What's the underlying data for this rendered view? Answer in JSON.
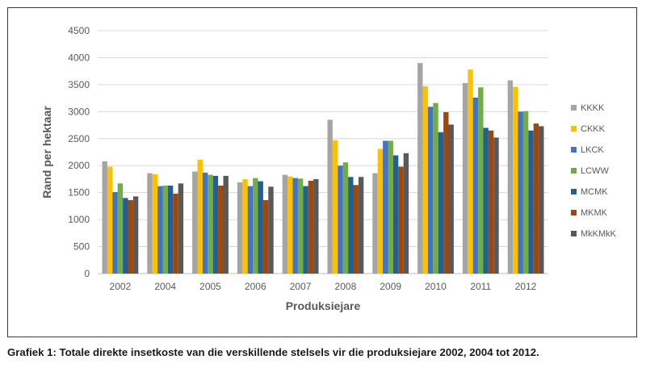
{
  "chart_data": {
    "type": "bar",
    "xlabel": "Produksiejare",
    "ylabel": "Rand per hektaar",
    "ylim": [
      0,
      4500
    ],
    "yticks": [
      0,
      500,
      1000,
      1500,
      2000,
      2500,
      3000,
      3500,
      4000,
      4500
    ],
    "grid": true,
    "legend": "right",
    "categories": [
      "2002",
      "2004",
      "2005",
      "2006",
      "2007",
      "2008",
      "2009",
      "2010",
      "2011",
      "2012"
    ],
    "series": [
      {
        "name": "KKKK",
        "color": "#a5a5a5",
        "values": [
          2080,
          1860,
          1890,
          1690,
          1830,
          2850,
          1860,
          3900,
          3530,
          3580
        ]
      },
      {
        "name": "CKKK",
        "color": "#ffc000",
        "values": [
          1980,
          1840,
          2110,
          1750,
          1800,
          2470,
          2310,
          3470,
          3780,
          3460
        ]
      },
      {
        "name": "LKCK",
        "color": "#4472c4",
        "values": [
          1510,
          1620,
          1870,
          1620,
          1770,
          2000,
          2460,
          3090,
          3260,
          3000
        ]
      },
      {
        "name": "LCWW",
        "color": "#70ad47",
        "values": [
          1670,
          1630,
          1830,
          1770,
          1760,
          2060,
          2460,
          3160,
          3450,
          3010
        ]
      },
      {
        "name": "MCMK",
        "color": "#255e91",
        "values": [
          1400,
          1630,
          1810,
          1710,
          1620,
          1790,
          2190,
          2620,
          2700,
          2650
        ]
      },
      {
        "name": "MKMK",
        "color": "#9e480e",
        "values": [
          1360,
          1480,
          1630,
          1360,
          1720,
          1640,
          1980,
          2990,
          2650,
          2780
        ]
      },
      {
        "name": "MkKMkK",
        "color": "#595959",
        "values": [
          1430,
          1670,
          1810,
          1610,
          1750,
          1790,
          2230,
          2760,
          2520,
          2730
        ]
      }
    ]
  },
  "caption": "Grafiek 1: Totale direkte insetkoste van die verskillende stelsels vir die produksiejare 2002, 2004 tot 2012."
}
